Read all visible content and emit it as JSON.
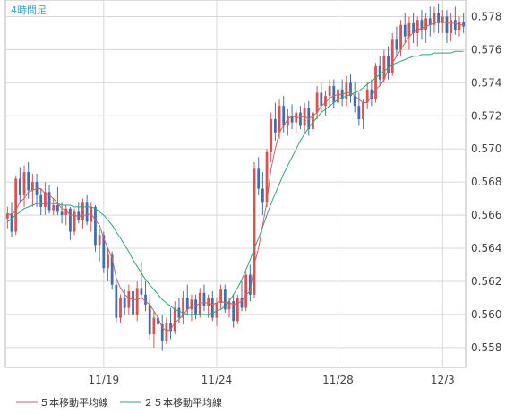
{
  "chart_data": {
    "type": "candlestick",
    "title": "4時間足",
    "ylim": [
      0.5568,
      0.579
    ],
    "y_ticks": [
      "0.558",
      "0.560",
      "0.562",
      "0.564",
      "0.566",
      "0.568",
      "0.570",
      "0.572",
      "0.574",
      "0.576",
      "0.578"
    ],
    "x_ticks": [
      {
        "label": "11/19",
        "index": 23
      },
      {
        "label": "11/24",
        "index": 50
      },
      {
        "label": "11/28",
        "index": 79
      },
      {
        "label": "12/3",
        "index": 104
      }
    ],
    "legend": [
      {
        "label": "５本移動平均線",
        "color": "#d06060"
      },
      {
        "label": "２５本移動平均線",
        "color": "#2aa87a"
      }
    ],
    "colors": {
      "up": "#d9534f",
      "down": "#3f6fb0",
      "ma5": "#d06060",
      "ma25": "#2aa87a",
      "grid": "#d8d8d8"
    },
    "candles": [
      [
        0.5658,
        0.5665,
        0.5652,
        0.5661
      ],
      [
        0.5661,
        0.5668,
        0.5647,
        0.565
      ],
      [
        0.565,
        0.5684,
        0.5648,
        0.5682
      ],
      [
        0.5682,
        0.5689,
        0.5668,
        0.5672
      ],
      [
        0.5672,
        0.569,
        0.5665,
        0.5686
      ],
      [
        0.5686,
        0.5692,
        0.567,
        0.5675
      ],
      [
        0.5675,
        0.5685,
        0.5665,
        0.568
      ],
      [
        0.568,
        0.5685,
        0.5665,
        0.5672
      ],
      [
        0.5672,
        0.5676,
        0.566,
        0.5665
      ],
      [
        0.5665,
        0.568,
        0.566,
        0.5674
      ],
      [
        0.5674,
        0.5678,
        0.5661,
        0.5663
      ],
      [
        0.5663,
        0.567,
        0.566,
        0.5666
      ],
      [
        0.5666,
        0.5677,
        0.566,
        0.5662
      ],
      [
        0.5662,
        0.5668,
        0.5655,
        0.566
      ],
      [
        0.566,
        0.5666,
        0.5654,
        0.5664
      ],
      [
        0.5664,
        0.5665,
        0.5645,
        0.565
      ],
      [
        0.565,
        0.5664,
        0.5648,
        0.5662
      ],
      [
        0.5662,
        0.5668,
        0.5655,
        0.5657
      ],
      [
        0.5657,
        0.567,
        0.5652,
        0.5668
      ],
      [
        0.5668,
        0.5672,
        0.5654,
        0.5656
      ],
      [
        0.5656,
        0.5668,
        0.565,
        0.5665
      ],
      [
        0.5665,
        0.5666,
        0.5638,
        0.5642
      ],
      [
        0.5642,
        0.5652,
        0.5632,
        0.5648
      ],
      [
        0.5648,
        0.565,
        0.5625,
        0.5628
      ],
      [
        0.5628,
        0.564,
        0.562,
        0.5636
      ],
      [
        0.5636,
        0.5638,
        0.5615,
        0.5618
      ],
      [
        0.5618,
        0.5622,
        0.5595,
        0.5598
      ],
      [
        0.5598,
        0.5612,
        0.5595,
        0.561
      ],
      [
        0.561,
        0.5615,
        0.56,
        0.5604
      ],
      [
        0.5604,
        0.5618,
        0.56,
        0.5614
      ],
      [
        0.5614,
        0.5616,
        0.5596,
        0.56
      ],
      [
        0.56,
        0.562,
        0.5596,
        0.5616
      ],
      [
        0.5616,
        0.5632,
        0.561,
        0.5612
      ],
      [
        0.5612,
        0.562,
        0.5602,
        0.5606
      ],
      [
        0.5606,
        0.5612,
        0.5585,
        0.5588
      ],
      [
        0.5588,
        0.5602,
        0.558,
        0.5598
      ],
      [
        0.5598,
        0.5612,
        0.5592,
        0.5594
      ],
      [
        0.5594,
        0.56,
        0.5578,
        0.5584
      ],
      [
        0.5584,
        0.5598,
        0.5582,
        0.5595
      ],
      [
        0.5595,
        0.5604,
        0.5585,
        0.559
      ],
      [
        0.559,
        0.5608,
        0.5588,
        0.5604
      ],
      [
        0.5604,
        0.561,
        0.5595,
        0.5598
      ],
      [
        0.5598,
        0.5614,
        0.5594,
        0.561
      ],
      [
        0.561,
        0.5618,
        0.56,
        0.5603
      ],
      [
        0.5603,
        0.5612,
        0.5596,
        0.5609
      ],
      [
        0.5609,
        0.5612,
        0.5597,
        0.56
      ],
      [
        0.56,
        0.5616,
        0.5598,
        0.5613
      ],
      [
        0.5613,
        0.5618,
        0.5602,
        0.5605
      ],
      [
        0.5605,
        0.5612,
        0.5598,
        0.561
      ],
      [
        0.561,
        0.5614,
        0.5596,
        0.5598
      ],
      [
        0.5598,
        0.561,
        0.5593,
        0.5607
      ],
      [
        0.5607,
        0.5618,
        0.5603,
        0.5615
      ],
      [
        0.5615,
        0.5618,
        0.5601,
        0.5603
      ],
      [
        0.5603,
        0.561,
        0.5598,
        0.5608
      ],
      [
        0.5608,
        0.5612,
        0.5592,
        0.5596
      ],
      [
        0.5596,
        0.5612,
        0.5594,
        0.561
      ],
      [
        0.561,
        0.562,
        0.5602,
        0.5604
      ],
      [
        0.5604,
        0.5626,
        0.5602,
        0.5624
      ],
      [
        0.5624,
        0.563,
        0.5608,
        0.5612
      ],
      [
        0.5612,
        0.5692,
        0.561,
        0.5688
      ],
      [
        0.5688,
        0.5695,
        0.5672,
        0.5676
      ],
      [
        0.5676,
        0.5686,
        0.566,
        0.5668
      ],
      [
        0.5668,
        0.57,
        0.5665,
        0.5698
      ],
      [
        0.5698,
        0.5722,
        0.5692,
        0.5718
      ],
      [
        0.5718,
        0.5728,
        0.5705,
        0.571
      ],
      [
        0.571,
        0.573,
        0.5706,
        0.5726
      ],
      [
        0.5726,
        0.5732,
        0.571,
        0.5714
      ],
      [
        0.5714,
        0.5724,
        0.5708,
        0.572
      ],
      [
        0.572,
        0.5727,
        0.5712,
        0.5716
      ],
      [
        0.5716,
        0.5724,
        0.571,
        0.5722
      ],
      [
        0.5722,
        0.5726,
        0.5712,
        0.5714
      ],
      [
        0.5714,
        0.5728,
        0.571,
        0.5725
      ],
      [
        0.5725,
        0.5729,
        0.5708,
        0.5712
      ],
      [
        0.5712,
        0.5724,
        0.5708,
        0.5722
      ],
      [
        0.5722,
        0.5738,
        0.5718,
        0.5734
      ],
      [
        0.5734,
        0.574,
        0.5722,
        0.5726
      ],
      [
        0.5726,
        0.5735,
        0.572,
        0.5732
      ],
      [
        0.5732,
        0.5742,
        0.5726,
        0.5738
      ],
      [
        0.5738,
        0.5742,
        0.5725,
        0.5728
      ],
      [
        0.5728,
        0.574,
        0.5722,
        0.5736
      ],
      [
        0.5736,
        0.5742,
        0.5726,
        0.573
      ],
      [
        0.573,
        0.5744,
        0.5726,
        0.574
      ],
      [
        0.574,
        0.5745,
        0.5728,
        0.5732
      ],
      [
        0.5732,
        0.574,
        0.5722,
        0.5726
      ],
      [
        0.5726,
        0.5734,
        0.5714,
        0.5718
      ],
      [
        0.5718,
        0.573,
        0.5712,
        0.5728
      ],
      [
        0.5728,
        0.574,
        0.5724,
        0.5736
      ],
      [
        0.5736,
        0.5742,
        0.5726,
        0.573
      ],
      [
        0.573,
        0.5752,
        0.5728,
        0.575
      ],
      [
        0.575,
        0.5756,
        0.5738,
        0.5742
      ],
      [
        0.5742,
        0.576,
        0.574,
        0.5756
      ],
      [
        0.5756,
        0.5762,
        0.5742,
        0.5746
      ],
      [
        0.5746,
        0.577,
        0.5744,
        0.5766
      ],
      [
        0.5766,
        0.5774,
        0.5756,
        0.576
      ],
      [
        0.576,
        0.5778,
        0.5756,
        0.5775
      ],
      [
        0.5775,
        0.5782,
        0.5764,
        0.5768
      ],
      [
        0.5768,
        0.578,
        0.576,
        0.5776
      ],
      [
        0.5776,
        0.5782,
        0.5764,
        0.577
      ],
      [
        0.577,
        0.578,
        0.5762,
        0.5778
      ],
      [
        0.5778,
        0.5784,
        0.5766,
        0.5772
      ],
      [
        0.5772,
        0.5782,
        0.5764,
        0.5779
      ],
      [
        0.5779,
        0.5786,
        0.5768,
        0.5775
      ],
      [
        0.5775,
        0.5786,
        0.577,
        0.5782
      ],
      [
        0.5782,
        0.5788,
        0.577,
        0.5776
      ],
      [
        0.5776,
        0.5784,
        0.577,
        0.578
      ],
      [
        0.578,
        0.5784,
        0.5764,
        0.577
      ],
      [
        0.577,
        0.5782,
        0.5765,
        0.5778
      ],
      [
        0.5778,
        0.5786,
        0.5769,
        0.5772
      ],
      [
        0.5772,
        0.578,
        0.5768,
        0.5777
      ],
      [
        0.5777,
        0.5782,
        0.577,
        0.5774
      ]
    ],
    "ma5": [
      0.5661,
      0.566,
      0.5663,
      0.5668,
      0.567,
      0.5674,
      0.5675,
      0.5676,
      0.5676,
      0.5673,
      0.5672,
      0.567,
      0.5667,
      0.5664,
      0.5663,
      0.566,
      0.566,
      0.5659,
      0.566,
      0.566,
      0.5661,
      0.5657,
      0.5654,
      0.5646,
      0.564,
      0.5634,
      0.5622,
      0.5616,
      0.5612,
      0.561,
      0.5609,
      0.5609,
      0.561,
      0.5608,
      0.5606,
      0.5602,
      0.5598,
      0.5592,
      0.559,
      0.5591,
      0.5595,
      0.5597,
      0.56,
      0.5603,
      0.5605,
      0.5605,
      0.5607,
      0.5607,
      0.5607,
      0.5606,
      0.5607,
      0.5608,
      0.5607,
      0.5607,
      0.5606,
      0.5607,
      0.5608,
      0.5612,
      0.5614,
      0.563,
      0.564,
      0.5654,
      0.5668,
      0.5688,
      0.57,
      0.571,
      0.5714,
      0.5718,
      0.572,
      0.5719,
      0.5719,
      0.572,
      0.5718,
      0.572,
      0.5722,
      0.5726,
      0.5728,
      0.5731,
      0.5732,
      0.5733,
      0.5733,
      0.5734,
      0.5734,
      0.5732,
      0.573,
      0.5728,
      0.5728,
      0.5732,
      0.5736,
      0.5738,
      0.5742,
      0.5748,
      0.5752,
      0.5756,
      0.576,
      0.5764,
      0.5768,
      0.577,
      0.5772,
      0.5773,
      0.5774,
      0.5775,
      0.5776,
      0.5777,
      0.5777,
      0.5776,
      0.5776,
      0.5776,
      0.5775,
      0.5775
    ],
    "ma25": [
      0.5656,
      0.5658,
      0.566,
      0.5662,
      0.5664,
      0.5665,
      0.5666,
      0.5667,
      0.5667,
      0.5667,
      0.5667,
      0.5667,
      0.5667,
      0.5666,
      0.5666,
      0.5666,
      0.5665,
      0.5665,
      0.5665,
      0.5665,
      0.5665,
      0.5664,
      0.5662,
      0.566,
      0.5657,
      0.5654,
      0.565,
      0.5646,
      0.5642,
      0.5638,
      0.5633,
      0.5629,
      0.5625,
      0.5621,
      0.5618,
      0.5615,
      0.5612,
      0.5609,
      0.5607,
      0.5605,
      0.5603,
      0.5602,
      0.5601,
      0.56,
      0.56,
      0.56,
      0.56,
      0.56,
      0.56,
      0.5601,
      0.5602,
      0.5603,
      0.5605,
      0.5608,
      0.5612,
      0.5616,
      0.5621,
      0.5627,
      0.5633,
      0.564,
      0.5646,
      0.5653,
      0.566,
      0.5667,
      0.5673,
      0.5679,
      0.5685,
      0.569,
      0.5695,
      0.57,
      0.5705,
      0.5709,
      0.5713,
      0.5716,
      0.5719,
      0.5722,
      0.5724,
      0.5726,
      0.5728,
      0.573,
      0.5731,
      0.5732,
      0.5733,
      0.5734,
      0.5735,
      0.5737,
      0.5739,
      0.5741,
      0.5743,
      0.5745,
      0.5747,
      0.5749,
      0.5751,
      0.5752,
      0.5753,
      0.5754,
      0.5755,
      0.5756,
      0.5756,
      0.5757,
      0.5757,
      0.5757,
      0.5758,
      0.5758,
      0.5758,
      0.5758,
      0.5758,
      0.5759,
      0.5759,
      0.5759
    ]
  }
}
